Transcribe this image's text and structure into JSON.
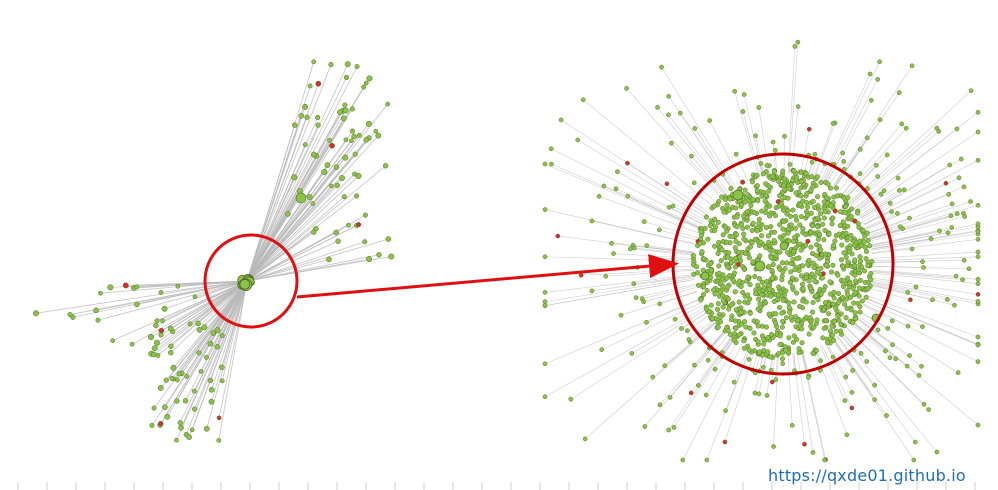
{
  "watermark": {
    "text": "https://qxde01.github.io"
  },
  "colors": {
    "edge": "#b9b9b9",
    "node_fill": "#8bc34a",
    "node_stroke": "#4e6b1f",
    "node_red": "#d32f2f",
    "highlight_circle": "#e01010",
    "zoom_circle": "#c00000",
    "arrow": "#e01010",
    "axis_tick": "#cfcfcf"
  },
  "panels": [
    {
      "view": "overview",
      "description_kind": "network-graph"
    },
    {
      "view": "zoomed-core",
      "description_kind": "network-graph"
    }
  ]
}
